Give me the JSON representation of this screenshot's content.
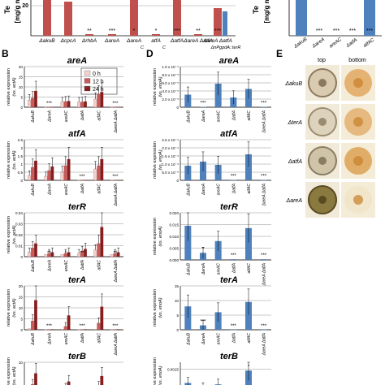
{
  "top_strip": {
    "left_ylabel": [
      "Te",
      "[mg/g n"
    ],
    "left_tick": "20",
    "left_labels": [
      "ΔakuB",
      "ΔcpcA",
      "ΔrhbA",
      "ΔareA",
      "ΔareA",
      "atfA",
      "ΔatfA",
      "ΔareA ΔatfA",
      "ΔareA ΔatfA"
    ],
    "left_labels_line2": [
      "",
      "",
      "",
      "",
      "C",
      "C",
      "",
      "",
      "ΔnPgpdA::terR"
    ],
    "left_sig": [
      "",
      "",
      "**",
      "***",
      "*",
      "*",
      "***",
      "**",
      "***"
    ],
    "right_ylabel": [
      "Te",
      "[mg/g n"
    ],
    "right_labels": [
      "ΔakuB",
      "ΔareA",
      "areA",
      "ΔatfA",
      "atfA"
    ],
    "right_labels_sup": [
      "",
      "",
      "C",
      "",
      "C"
    ],
    "right_sig": [
      "",
      "***",
      "***",
      "***",
      "***"
    ]
  },
  "panel_labels": {
    "B": "B",
    "D": "D",
    "E": "E"
  },
  "legend_B": [
    {
      "name": "0 h",
      "color": "#f3d0cc"
    },
    {
      "name": "12 h",
      "color": "#c85a5a"
    },
    {
      "name": "24 h",
      "color": "#8a1c1c"
    }
  ],
  "ylabel_B": [
    "relative expression",
    "(vs. actA)"
  ],
  "ylabel_D": [
    "relative expression",
    "(vs. enoA)"
  ],
  "xlabels_B": [
    "ΔakuB",
    "ΔareA",
    "areAC",
    "ΔatfA",
    "atfAC",
    "ΔareA ΔatfA"
  ],
  "xlabels_D": [
    "ΔakuB",
    "ΔareA",
    "areAC",
    "ΔatfA",
    "atfAC",
    "ΔareA ΔatfA"
  ],
  "colors": {
    "b0": "#f3d0cc",
    "b12": "#c85a5a",
    "b24": "#8a1c1c",
    "d": "#4f81bd",
    "e_bg": "#ead8b8"
  },
  "panel_E": {
    "col_labels": [
      "top",
      "bottom"
    ],
    "row_labels": [
      "ΔakuB",
      "ΔterA",
      "ΔatfA",
      "ΔareA"
    ]
  },
  "chart_data": [
    {
      "type": "bar",
      "panel": "B",
      "title": "areA",
      "ylim": [
        0,
        20
      ],
      "yticks": [
        0,
        5,
        10,
        15,
        20
      ],
      "categories": [
        "ΔakuB",
        "ΔareA",
        "areAC",
        "ΔatfA",
        "atfAC",
        "ΔareA ΔatfA"
      ],
      "series": [
        {
          "name": "0 h",
          "values": [
            3.5,
            0.1,
            2.5,
            2.5,
            4.0,
            0.1
          ]
        },
        {
          "name": "12 h",
          "values": [
            4.5,
            0.1,
            2.8,
            2.6,
            6.5,
            0.1
          ]
        },
        {
          "name": "24 h",
          "values": [
            8.0,
            0.1,
            3.0,
            2.8,
            7.5,
            0.1
          ]
        }
      ],
      "sig": [
        "",
        "***",
        "",
        "",
        "",
        "***"
      ]
    },
    {
      "type": "bar",
      "panel": "B",
      "title": "atfA",
      "ylim": [
        0,
        2.5
      ],
      "yticks": [
        0,
        0.5,
        1,
        1.5,
        2,
        2.5
      ],
      "categories": [
        "ΔakuB",
        "ΔareA",
        "areAC",
        "ΔatfA",
        "atfAC",
        "ΔareA ΔatfA"
      ],
      "series": [
        {
          "name": "0 h",
          "values": [
            0.3,
            0.25,
            0.5,
            0.02,
            0.7,
            0.02
          ]
        },
        {
          "name": "12 h",
          "values": [
            0.8,
            0.6,
            0.9,
            0.02,
            0.9,
            0.02
          ]
        },
        {
          "name": "24 h",
          "values": [
            1.2,
            0.85,
            1.3,
            0.02,
            1.3,
            0.02
          ]
        }
      ],
      "sig": [
        "",
        "",
        "",
        "***",
        "",
        "***"
      ]
    },
    {
      "type": "bar",
      "panel": "B",
      "title": "terR",
      "ylim": [
        0,
        0.04
      ],
      "yticks": [
        0,
        0.01,
        0.02,
        0.03,
        0.04
      ],
      "categories": [
        "ΔakuB",
        "ΔareA",
        "areAC",
        "ΔatfA",
        "atfAC",
        "ΔareA ΔatfA"
      ],
      "series": [
        {
          "name": "0 h",
          "values": [
            0.004,
            0.002,
            0.002,
            0.003,
            0.006,
            0.002
          ]
        },
        {
          "name": "12 h",
          "values": [
            0.008,
            0.003,
            0.003,
            0.005,
            0.012,
            0.003
          ]
        },
        {
          "name": "24 h",
          "values": [
            0.012,
            0.004,
            0.004,
            0.007,
            0.027,
            0.004
          ]
        }
      ],
      "sig": [
        "",
        "**",
        "*",
        "**",
        "",
        "**"
      ]
    },
    {
      "type": "bar",
      "panel": "B",
      "title": "terA",
      "ylim": [
        0,
        20
      ],
      "yticks": [
        0,
        5,
        10,
        15,
        20
      ],
      "categories": [
        "ΔakuB",
        "ΔareA",
        "areAC",
        "ΔatfA",
        "atfAC",
        "ΔareA ΔatfA"
      ],
      "series": [
        {
          "name": "0 h",
          "values": [
            0.5,
            0.1,
            0.3,
            0.1,
            0.3,
            0.1
          ]
        },
        {
          "name": "12 h",
          "values": [
            4.0,
            0.1,
            1.5,
            0.1,
            3.0,
            0.1
          ]
        },
        {
          "name": "24 h",
          "values": [
            13.5,
            0.2,
            6.5,
            0.2,
            10.5,
            0.2
          ]
        }
      ],
      "sig": [
        "",
        "***",
        "",
        "***",
        "",
        "***"
      ]
    },
    {
      "type": "bar",
      "panel": "B",
      "title": "terB",
      "ylim": [
        0,
        10
      ],
      "yticks": [
        10
      ],
      "categories": [
        "ΔakuB",
        "ΔareA",
        "areAC",
        "ΔatfA",
        "atfAC",
        "ΔareA ΔatfA"
      ],
      "series": [
        {
          "name": "0 h",
          "values": [
            0.5,
            0.1,
            0.3,
            0.1,
            0.3,
            0.1
          ]
        },
        {
          "name": "12 h",
          "values": [
            2.0,
            0.1,
            1.0,
            0.1,
            1.5,
            0.1
          ]
        },
        {
          "name": "24 h",
          "values": [
            6.0,
            0.2,
            3.0,
            0.2,
            5.0,
            0.2
          ]
        }
      ],
      "sig": [
        "",
        "",
        "",
        "",
        "",
        ""
      ]
    },
    {
      "type": "bar",
      "panel": "D",
      "title": "areA",
      "ylim": [
        0,
        0.0001
      ],
      "ytick_labels": [
        "0",
        "2.0 x 10⁻⁵",
        "4.0 x 10⁻⁵",
        "6.0 x 10⁻⁵",
        "8.0 x 10⁻⁵",
        "1.0 x 10⁻⁴"
      ],
      "categories": [
        "ΔakuB",
        "ΔareA",
        "areAC",
        "ΔatfA",
        "atfAC",
        "ΔareA ΔatfA"
      ],
      "values": [
        3.1e-05,
        1e-06,
        5.8e-05,
        2.4e-05,
        4.5e-05,
        1e-06
      ],
      "sig": [
        "",
        "***",
        "",
        "",
        "",
        "***"
      ]
    },
    {
      "type": "bar",
      "panel": "D",
      "title": "atfA",
      "ylim": [
        0,
        0.00025
      ],
      "ytick_labels": [
        "0",
        "5.0 x 10⁻⁵",
        "1.0 x 10⁻⁴",
        "1.5 x 10⁻⁴",
        "2.0 x 10⁻⁴",
        "2.5 x 10⁻⁴"
      ],
      "categories": [
        "ΔakuB",
        "ΔareA",
        "areAC",
        "ΔatfA",
        "atfAC",
        "ΔareA ΔatfA"
      ],
      "values": [
        9e-05,
        0.000115,
        9.5e-05,
        2e-06,
        0.00016,
        2e-06
      ],
      "sig": [
        "",
        "",
        "",
        "***",
        "",
        "***"
      ]
    },
    {
      "type": "bar",
      "panel": "D",
      "title": "terR",
      "ylim": [
        0,
        0.02
      ],
      "ytick_labels": [
        "0.000",
        "0.005",
        "0.010",
        "0.015",
        "0.020"
      ],
      "categories": [
        "ΔakuB",
        "ΔareA",
        "areAC",
        "ΔatfA",
        "atfAC",
        "ΔareA ΔatfA"
      ],
      "values": [
        0.0145,
        0.003,
        0.008,
        0.0003,
        0.0135,
        0.0003
      ],
      "sig": [
        "",
        "*",
        "",
        "***",
        "",
        "***"
      ]
    },
    {
      "type": "bar",
      "panel": "D",
      "title": "terA",
      "ylim": [
        0,
        15
      ],
      "yticks": [
        0,
        5,
        10,
        15
      ],
      "categories": [
        "ΔakuB",
        "ΔareA",
        "areAC",
        "ΔatfA",
        "atfAC",
        "ΔareA ΔatfA"
      ],
      "values": [
        8.0,
        1.5,
        6.0,
        0.05,
        9.5,
        0.05
      ],
      "sig": [
        "",
        "***",
        "",
        "***",
        "",
        "***"
      ]
    },
    {
      "type": "bar",
      "panel": "D",
      "title": "terB",
      "ylim": [
        0,
        0.002
      ],
      "yticks": [
        0.0015
      ],
      "ytick_labels": [
        "0.0015"
      ],
      "categories": [
        "ΔakuB",
        "ΔareA",
        "areAC",
        "ΔatfA",
        "atfAC",
        "ΔareA ΔatfA"
      ],
      "values": [
        0.0005,
        0.0002,
        0.0004,
        1e-05,
        0.0014,
        1e-05
      ],
      "sig": [
        "",
        "",
        "",
        "",
        "*",
        ""
      ]
    }
  ]
}
